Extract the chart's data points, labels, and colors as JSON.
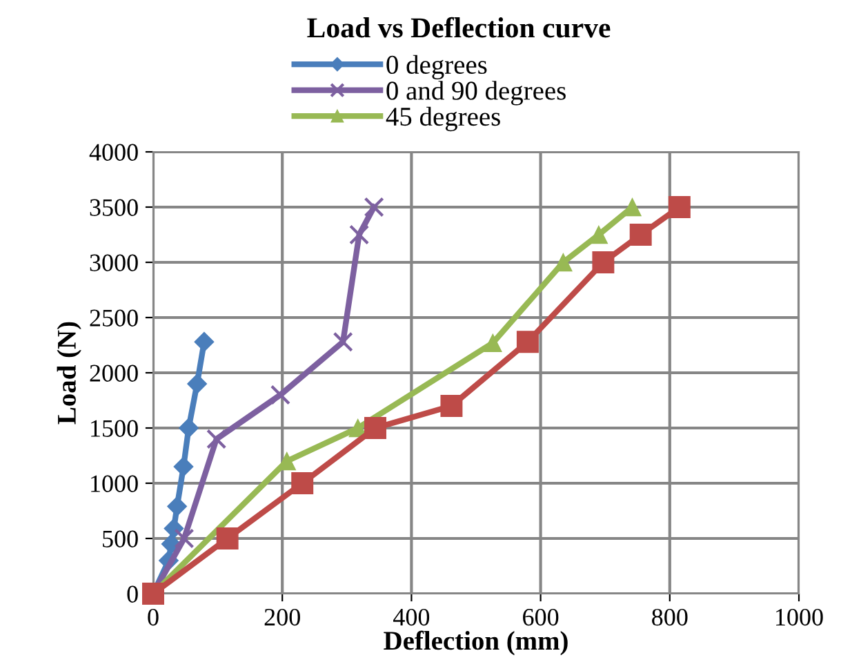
{
  "chart_data": {
    "type": "line",
    "title": "Load vs Deflection curve",
    "xlabel": "Deflection (mm)",
    "ylabel": "Load (N)",
    "xlim": [
      0,
      1000
    ],
    "xticks": [
      0,
      200,
      400,
      600,
      800,
      1000
    ],
    "ylim": [
      0,
      4000
    ],
    "yticks": [
      0,
      500,
      1000,
      1500,
      2000,
      2500,
      3000,
      3500,
      4000
    ],
    "grid": true,
    "legend": "top",
    "line_style": "solid",
    "series": [
      {
        "name": "0 degrees",
        "color": "#4a7ebb",
        "marker": "diamond",
        "x": [
          0,
          24,
          28,
          32,
          37,
          47,
          55,
          68,
          79
        ],
        "values": [
          0,
          300,
          450,
          590,
          790,
          1150,
          1500,
          1900,
          2280
        ]
      },
      {
        "name": "0 and 90 degrees",
        "color": "#7d60a0",
        "marker": "cross",
        "x": [
          0,
          48,
          98,
          197,
          294,
          319,
          342
        ],
        "values": [
          0,
          500,
          1400,
          1800,
          2280,
          3250,
          3500
        ]
      },
      {
        "name": "45 degrees",
        "color": "#98b954",
        "marker": "triangle",
        "x": [
          0,
          207,
          317,
          526,
          635,
          690,
          742
        ],
        "values": [
          0,
          1200,
          1500,
          2270,
          3000,
          3250,
          3500
        ]
      },
      {
        "color": "#be4b48",
        "marker": "square",
        "x": [
          0,
          115,
          231,
          344,
          462,
          580,
          697,
          755,
          815
        ],
        "values": [
          0,
          500,
          1000,
          1500,
          1700,
          2280,
          3000,
          3250,
          3500
        ]
      }
    ]
  }
}
